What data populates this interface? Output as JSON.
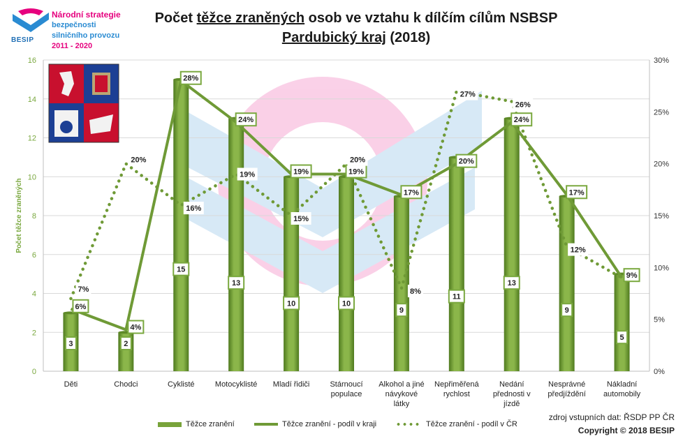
{
  "logo": {
    "line1": "Národní strategie",
    "line2": "bezpečnosti",
    "line3": "silničního provozu",
    "line4": "2011 - 2020",
    "brand": "BESIP"
  },
  "title": {
    "pre": "Počet ",
    "underlined": "těžce zraněných",
    "post": " osob ve vztahu k dílčím cílům NSBSP",
    "line2_underlined": "Pardubický kraj",
    "line2_post": " (2018)"
  },
  "footer": {
    "source": "zdroj vstupních dat: ŘSDP PP ČR",
    "copyright": "Copyright © 2018  BESIP"
  },
  "colors": {
    "bar": "#78a33a",
    "bar_dark": "#5e8a27",
    "line": "#6f9a36",
    "axis_text": "#7aa83f",
    "grid": "#d9d9d9"
  },
  "chart_data": {
    "type": "bar",
    "title": "Počet těžce zraněných osob ve vztahu k dílčím cílům NSBSP Pardubický kraj (2018)",
    "ylabel": "Počet těžce zraněných",
    "ylim": [
      0,
      16
    ],
    "y_ticks": [
      "0",
      "2",
      "4",
      "6",
      "8",
      "10",
      "12",
      "14",
      "16"
    ],
    "y2lim": [
      0,
      30
    ],
    "y2_ticks": [
      "0%",
      "5%",
      "10%",
      "15%",
      "20%",
      "25%",
      "30%"
    ],
    "grid": true,
    "legend_position": "bottom",
    "categories": [
      [
        "Děti"
      ],
      [
        "Chodci"
      ],
      [
        "Cyklisté"
      ],
      [
        "Motocyklisté"
      ],
      [
        "Mladí řidiči"
      ],
      [
        "Stárnoucí",
        "populace"
      ],
      [
        "Alkohol a jiné",
        "návykové",
        "látky"
      ],
      [
        "Nepřiměřená",
        "rychlost"
      ],
      [
        "Nedání",
        "přednosti v",
        "jízdě"
      ],
      [
        "Nesprávné",
        "předjíždění"
      ],
      [
        "Nákladní",
        "automobily"
      ]
    ],
    "series": [
      {
        "name": "Těžce zranění",
        "type": "bar",
        "axis": "left",
        "values": [
          3,
          2,
          15,
          13,
          10,
          10,
          9,
          11,
          13,
          9,
          5
        ],
        "labels": [
          "3",
          "2",
          "15",
          "13",
          "10",
          "10",
          "9",
          "11",
          "13",
          "9",
          "5"
        ]
      },
      {
        "name": "Těžce zranění - podíl v kraji",
        "type": "line",
        "axis": "right",
        "values": [
          6,
          4,
          28,
          24,
          19,
          19,
          17,
          20,
          24,
          17,
          9
        ],
        "labels": [
          "6%",
          "4%",
          "28%",
          "24%",
          "19%",
          "19%",
          "17%",
          "20%",
          "24%",
          "17%",
          "9%"
        ]
      },
      {
        "name": "Těžce zranění - podíl v ČR",
        "type": "dotted-line",
        "axis": "right",
        "values": [
          7,
          20,
          16,
          19,
          15,
          20,
          8,
          27,
          26,
          12,
          9
        ],
        "labels": [
          "7%",
          "20%",
          "16%",
          "19%",
          "15%",
          "20%",
          "8%",
          "27%",
          "26%",
          "12%",
          ""
        ]
      }
    ]
  }
}
